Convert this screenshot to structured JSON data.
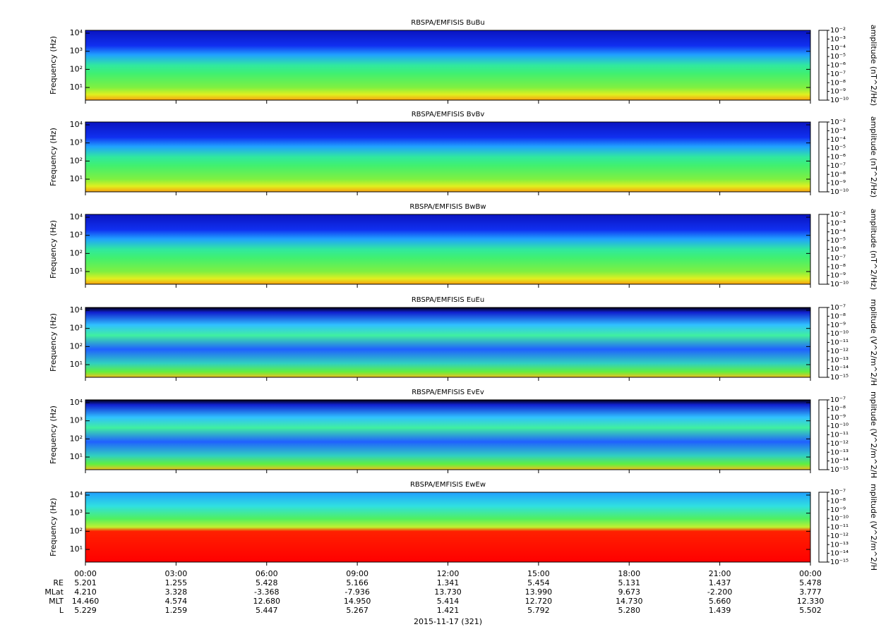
{
  "chart_data": [
    {
      "type": "spectrogram",
      "title": "RBSPA/EMFISIS  BuBu",
      "y_label": "Frequency (Hz)",
      "log_y": true,
      "ylim": [
        2,
        14300
      ],
      "yticks": [
        {
          "value": 10,
          "label": "10¹"
        },
        {
          "value": 100,
          "label": "10²"
        },
        {
          "value": 1000,
          "label": "10³"
        },
        {
          "value": 10000,
          "label": "10⁴"
        }
      ],
      "z_label": "amplitude (nT^2/Hz)",
      "zlim": [
        1e-10,
        0.01
      ],
      "zticks": [
        {
          "value": 1e-10,
          "label": "10⁻¹⁰"
        },
        {
          "value": 1e-09,
          "label": "10⁻⁹"
        },
        {
          "value": 1e-08,
          "label": "10⁻⁸"
        },
        {
          "value": 1e-07,
          "label": "10⁻⁷"
        },
        {
          "value": 1e-06,
          "label": "10⁻⁶"
        },
        {
          "value": 1e-05,
          "label": "10⁻⁵"
        },
        {
          "value": 0.0001,
          "label": "10⁻⁴"
        },
        {
          "value": 0.001,
          "label": "10⁻³"
        },
        {
          "value": 0.01,
          "label": "10⁻²"
        }
      ],
      "colormap": [
        "#00007f",
        "#0000ff",
        "#0080ff",
        "#00ffff",
        "#00ff80",
        "#80ff00",
        "#ffff00",
        "#ff8000",
        "#ff0000"
      ]
    },
    {
      "type": "spectrogram",
      "title": "RBSPA/EMFISIS  BvBv",
      "y_label": "Frequency (Hz)",
      "log_y": true,
      "ylim": [
        2,
        14300
      ],
      "yticks": [
        {
          "value": 10,
          "label": "10¹"
        },
        {
          "value": 100,
          "label": "10²"
        },
        {
          "value": 1000,
          "label": "10³"
        },
        {
          "value": 10000,
          "label": "10⁴"
        }
      ],
      "z_label": "amplitude (nT^2/Hz)",
      "zlim": [
        1e-10,
        0.01
      ],
      "zticks": [
        {
          "value": 1e-10,
          "label": "10⁻¹⁰"
        },
        {
          "value": 1e-09,
          "label": "10⁻⁹"
        },
        {
          "value": 1e-08,
          "label": "10⁻⁸"
        },
        {
          "value": 1e-07,
          "label": "10⁻⁷"
        },
        {
          "value": 1e-06,
          "label": "10⁻⁶"
        },
        {
          "value": 1e-05,
          "label": "10⁻⁵"
        },
        {
          "value": 0.0001,
          "label": "10⁻⁴"
        },
        {
          "value": 0.001,
          "label": "10⁻³"
        },
        {
          "value": 0.01,
          "label": "10⁻²"
        }
      ],
      "colormap": [
        "#00007f",
        "#0000ff",
        "#0080ff",
        "#00ffff",
        "#00ff80",
        "#80ff00",
        "#ffff00",
        "#ff8000",
        "#ff0000"
      ]
    },
    {
      "type": "spectrogram",
      "title": "RBSPA/EMFISIS  BwBw",
      "y_label": "Frequency (Hz)",
      "log_y": true,
      "ylim": [
        2,
        14300
      ],
      "yticks": [
        {
          "value": 10,
          "label": "10¹"
        },
        {
          "value": 100,
          "label": "10²"
        },
        {
          "value": 1000,
          "label": "10³"
        },
        {
          "value": 10000,
          "label": "10⁴"
        }
      ],
      "z_label": "amplitude (nT^2/Hz)",
      "zlim": [
        1e-10,
        0.01
      ],
      "zticks": [
        {
          "value": 1e-10,
          "label": "10⁻¹⁰"
        },
        {
          "value": 1e-09,
          "label": "10⁻⁹"
        },
        {
          "value": 1e-08,
          "label": "10⁻⁸"
        },
        {
          "value": 1e-07,
          "label": "10⁻⁷"
        },
        {
          "value": 1e-06,
          "label": "10⁻⁶"
        },
        {
          "value": 1e-05,
          "label": "10⁻⁵"
        },
        {
          "value": 0.0001,
          "label": "10⁻⁴"
        },
        {
          "value": 0.001,
          "label": "10⁻³"
        },
        {
          "value": 0.01,
          "label": "10⁻²"
        }
      ],
      "colormap": [
        "#00007f",
        "#0000ff",
        "#0080ff",
        "#00ffff",
        "#00ff80",
        "#80ff00",
        "#ffff00",
        "#ff8000",
        "#ff0000"
      ]
    },
    {
      "type": "spectrogram",
      "title": "RBSPA/EMFISIS  EuEu",
      "y_label": "Frequency (Hz)",
      "log_y": true,
      "ylim": [
        2,
        14300
      ],
      "yticks": [
        {
          "value": 10,
          "label": "10¹"
        },
        {
          "value": 100,
          "label": "10²"
        },
        {
          "value": 1000,
          "label": "10³"
        },
        {
          "value": 10000,
          "label": "10⁴"
        }
      ],
      "z_label": "mplitude (V^2/m^2/H",
      "zlim": [
        1e-15,
        1e-07
      ],
      "zticks": [
        {
          "value": 1e-15,
          "label": "10⁻¹⁵"
        },
        {
          "value": 1e-14,
          "label": "10⁻¹⁴"
        },
        {
          "value": 1e-13,
          "label": "10⁻¹³"
        },
        {
          "value": 1e-12,
          "label": "10⁻¹²"
        },
        {
          "value": 1e-11,
          "label": "10⁻¹¹"
        },
        {
          "value": 1e-10,
          "label": "10⁻¹⁰"
        },
        {
          "value": 1e-09,
          "label": "10⁻⁹"
        },
        {
          "value": 1e-08,
          "label": "10⁻⁸"
        },
        {
          "value": 1e-07,
          "label": "10⁻⁷"
        }
      ],
      "colormap": [
        "#00007f",
        "#0000ff",
        "#0080ff",
        "#00ffff",
        "#00ff80",
        "#80ff00",
        "#ffff00",
        "#ff8000",
        "#ff0000"
      ]
    },
    {
      "type": "spectrogram",
      "title": "RBSPA/EMFISIS  EvEv",
      "y_label": "Frequency (Hz)",
      "log_y": true,
      "ylim": [
        2,
        14300
      ],
      "yticks": [
        {
          "value": 10,
          "label": "10¹"
        },
        {
          "value": 100,
          "label": "10²"
        },
        {
          "value": 1000,
          "label": "10³"
        },
        {
          "value": 10000,
          "label": "10⁴"
        }
      ],
      "z_label": "mplitude (V^2/m^2/H",
      "zlim": [
        1e-15,
        1e-07
      ],
      "zticks": [
        {
          "value": 1e-15,
          "label": "10⁻¹⁵"
        },
        {
          "value": 1e-14,
          "label": "10⁻¹⁴"
        },
        {
          "value": 1e-13,
          "label": "10⁻¹³"
        },
        {
          "value": 1e-12,
          "label": "10⁻¹²"
        },
        {
          "value": 1e-11,
          "label": "10⁻¹¹"
        },
        {
          "value": 1e-10,
          "label": "10⁻¹⁰"
        },
        {
          "value": 1e-09,
          "label": "10⁻⁹"
        },
        {
          "value": 1e-08,
          "label": "10⁻⁸"
        },
        {
          "value": 1e-07,
          "label": "10⁻⁷"
        }
      ],
      "colormap": [
        "#00007f",
        "#0000ff",
        "#0080ff",
        "#00ffff",
        "#00ff80",
        "#80ff00",
        "#ffff00",
        "#ff8000",
        "#ff0000"
      ]
    },
    {
      "type": "spectrogram",
      "title": "RBSPA/EMFISIS  EwEw",
      "y_label": "Frequency (Hz)",
      "log_y": true,
      "ylim": [
        2,
        14300
      ],
      "yticks": [
        {
          "value": 10,
          "label": "10¹"
        },
        {
          "value": 100,
          "label": "10²"
        },
        {
          "value": 1000,
          "label": "10³"
        },
        {
          "value": 10000,
          "label": "10⁴"
        }
      ],
      "z_label": "mplitude (V^2/m^2/H",
      "zlim": [
        1e-15,
        1e-07
      ],
      "zticks": [
        {
          "value": 1e-15,
          "label": "10⁻¹⁵"
        },
        {
          "value": 1e-14,
          "label": "10⁻¹⁴"
        },
        {
          "value": 1e-13,
          "label": "10⁻¹³"
        },
        {
          "value": 1e-12,
          "label": "10⁻¹²"
        },
        {
          "value": 1e-11,
          "label": "10⁻¹¹"
        },
        {
          "value": 1e-10,
          "label": "10⁻¹⁰"
        },
        {
          "value": 1e-09,
          "label": "10⁻⁹"
        },
        {
          "value": 1e-08,
          "label": "10⁻⁸"
        },
        {
          "value": 1e-07,
          "label": "10⁻⁷"
        }
      ],
      "colormap": [
        "#00007f",
        "#0000ff",
        "#0080ff",
        "#00ffff",
        "#00ff80",
        "#80ff00",
        "#ffff00",
        "#ff8000",
        "#ff0000"
      ]
    }
  ],
  "x_axis": {
    "xlim": [
      0,
      24
    ],
    "xticks": [
      {
        "value": 0,
        "label": "00:00"
      },
      {
        "value": 3,
        "label": "03:00"
      },
      {
        "value": 6,
        "label": "06:00"
      },
      {
        "value": 9,
        "label": "09:00"
      },
      {
        "value": 12,
        "label": "12:00"
      },
      {
        "value": 15,
        "label": "15:00"
      },
      {
        "value": 18,
        "label": "18:00"
      },
      {
        "value": 21,
        "label": "21:00"
      },
      {
        "value": 24,
        "label": "00:00"
      }
    ]
  },
  "ephemeris": {
    "rows": [
      {
        "label": "RE",
        "values": [
          "5.201",
          "1.255",
          "5.428",
          "5.166",
          "1.341",
          "5.454",
          "5.131",
          "1.437",
          "5.478"
        ]
      },
      {
        "label": "MLat",
        "values": [
          "4.210",
          "3.328",
          "-3.368",
          "-7.936",
          "13.730",
          "13.990",
          "9.673",
          "-2.200",
          "3.777"
        ]
      },
      {
        "label": "MLT",
        "values": [
          "14.460",
          "4.574",
          "12.680",
          "14.950",
          "5.414",
          "12.720",
          "14.730",
          "5.660",
          "12.330"
        ]
      },
      {
        "label": "L",
        "values": [
          "5.229",
          "1.259",
          "5.447",
          "5.267",
          "1.421",
          "5.792",
          "5.280",
          "1.439",
          "5.502"
        ]
      }
    ]
  },
  "date_label": "2015-11-17 (321)"
}
